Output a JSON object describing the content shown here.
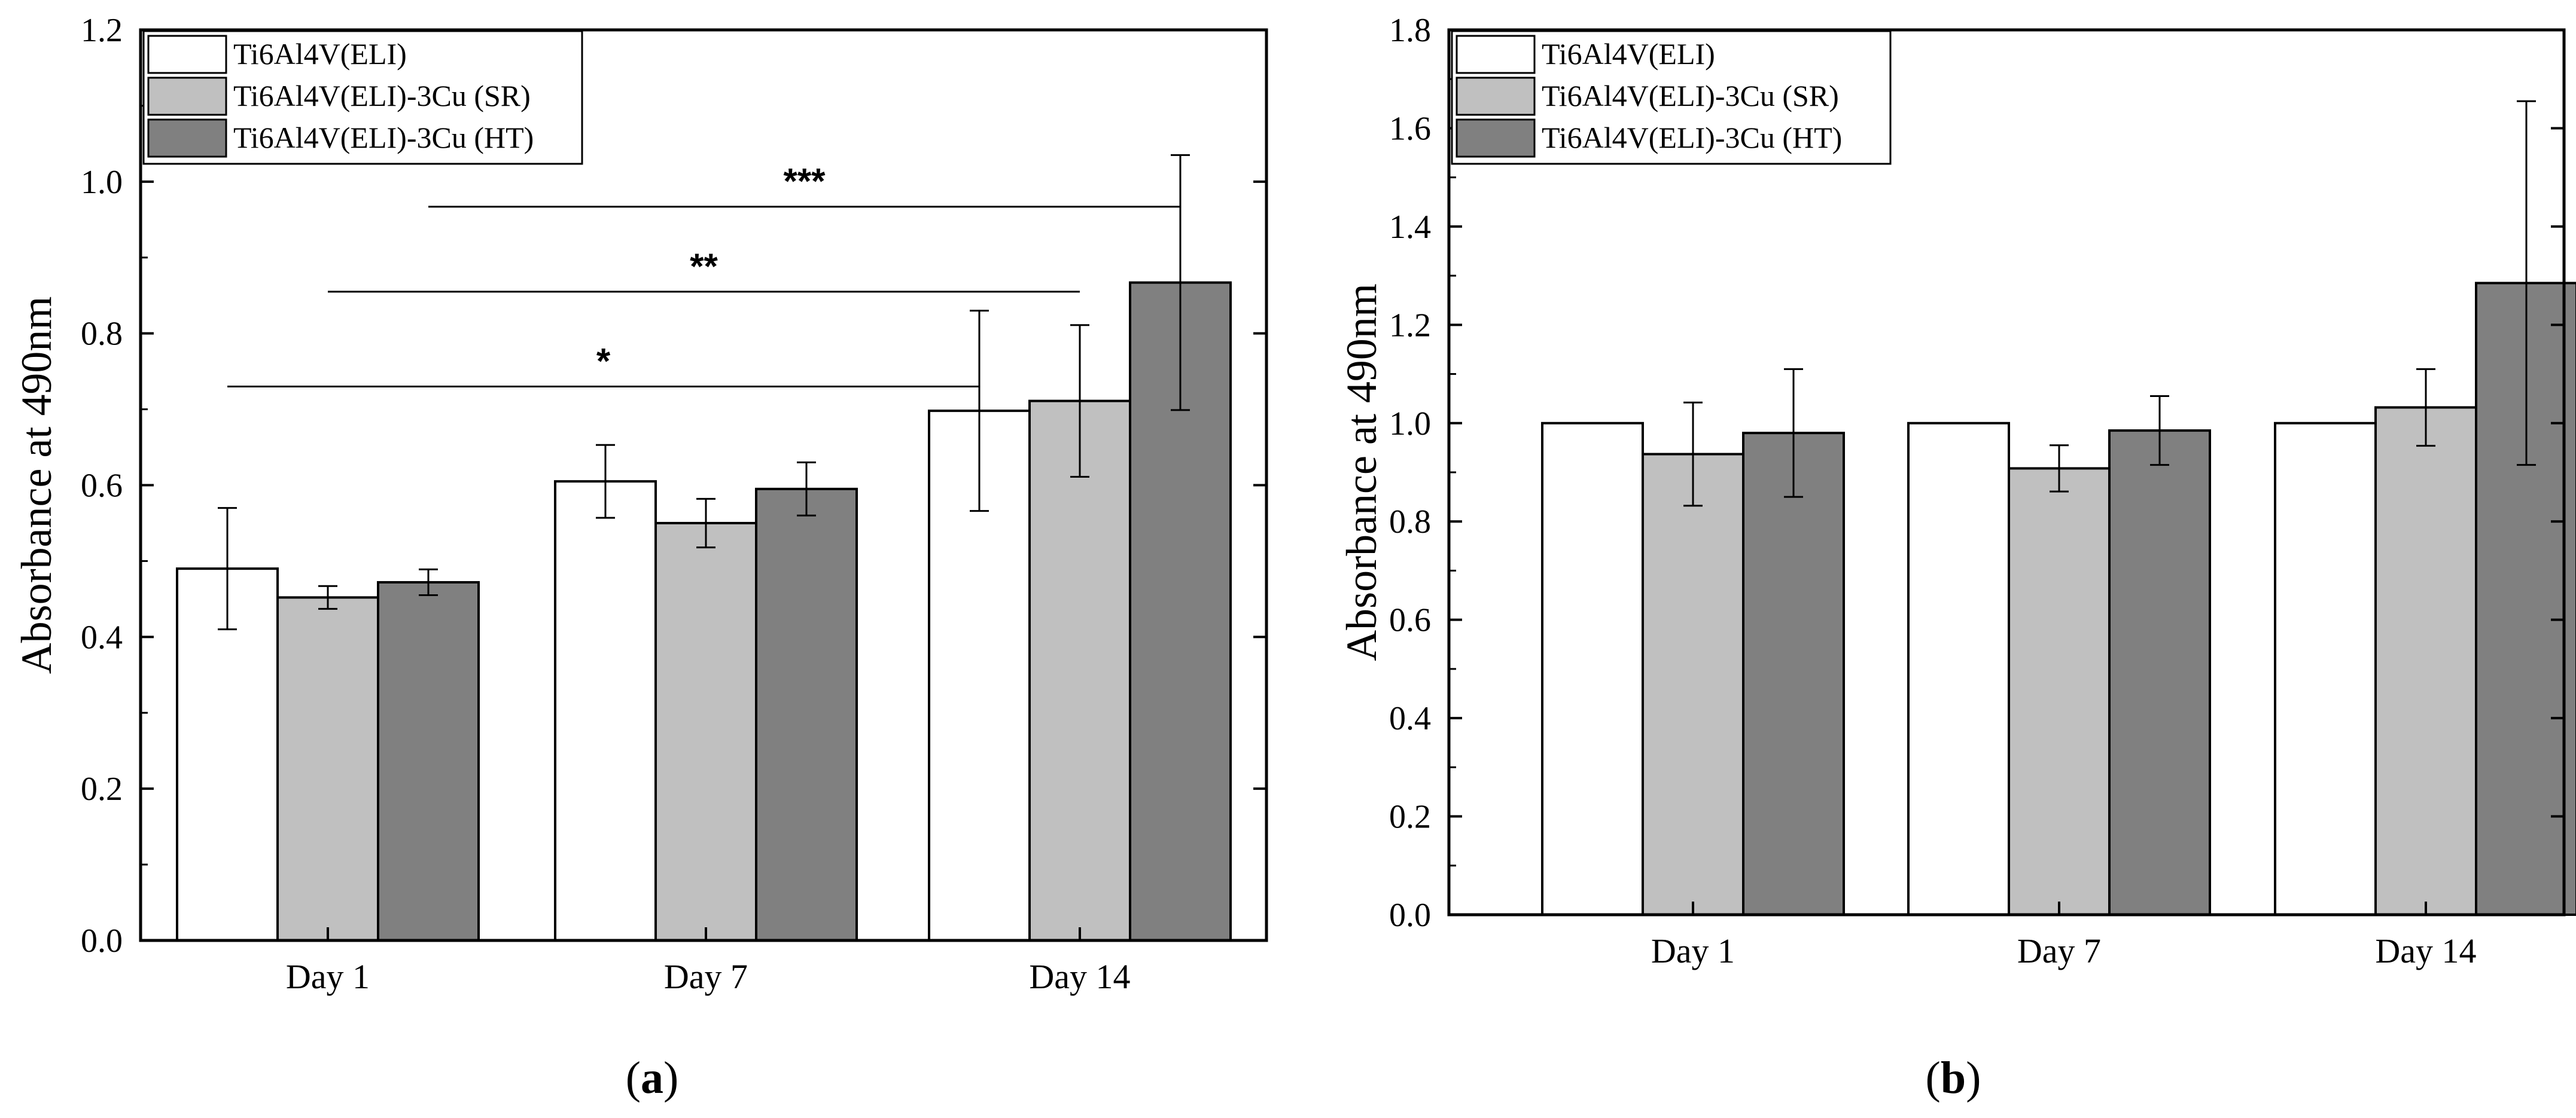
{
  "chart_data": [
    {
      "type": "bar",
      "panel_label": "a",
      "ylabel": "Absorbance at 490nm",
      "xlabel": "",
      "ylim": [
        0,
        1.2
      ],
      "yticks": [
        0.0,
        0.2,
        0.4,
        0.6,
        0.8,
        1.0,
        1.2
      ],
      "ytick_labels": [
        "0.0",
        "0.2",
        "0.4",
        "0.6",
        "0.8",
        "1.0",
        "1.2"
      ],
      "categories": [
        "Day 1",
        "Day 7",
        "Day 14"
      ],
      "legend_position": "top-left",
      "series": [
        {
          "name": "Ti6Al4V(ELI)",
          "color": "#ffffff",
          "values": [
            0.49,
            0.605,
            0.698
          ],
          "errors": [
            0.08,
            0.048,
            0.132
          ]
        },
        {
          "name": "Ti6Al4V(ELI)-3Cu (SR)",
          "color": "#c0c0c0",
          "values": [
            0.452,
            0.55,
            0.711
          ],
          "errors": [
            0.015,
            0.032,
            0.1
          ]
        },
        {
          "name": "Ti6Al4V(ELI)-3Cu (HT)",
          "color": "#808080",
          "values": [
            0.472,
            0.595,
            0.867
          ],
          "errors": [
            0.017,
            0.035,
            0.168
          ]
        }
      ],
      "significance": [
        {
          "label": "*",
          "from": {
            "category": 0,
            "series": 0
          },
          "to": {
            "category": 2,
            "series": 0
          },
          "y": 0.73
        },
        {
          "label": "**",
          "from": {
            "category": 0,
            "series": 1
          },
          "to": {
            "category": 2,
            "series": 1
          },
          "y": 0.855
        },
        {
          "label": "***",
          "from": {
            "category": 0,
            "series": 2
          },
          "to": {
            "category": 2,
            "series": 2
          },
          "y": 0.967
        }
      ]
    },
    {
      "type": "bar",
      "panel_label": "b",
      "ylabel": "Absorbance at 490nm",
      "xlabel": "",
      "ylim": [
        0,
        1.8
      ],
      "yticks": [
        0.0,
        0.2,
        0.4,
        0.6,
        0.8,
        1.0,
        1.2,
        1.4,
        1.6,
        1.8
      ],
      "ytick_labels": [
        "0.0",
        "0.2",
        "0.4",
        "0.6",
        "0.8",
        "1.0",
        "1.2",
        "1.4",
        "1.6",
        "1.8"
      ],
      "categories": [
        "Day 1",
        "Day 7",
        "Day 14"
      ],
      "legend_position": "top-left",
      "series": [
        {
          "name": "Ti6Al4V(ELI)",
          "color": "#ffffff",
          "values": [
            1.0,
            1.0,
            1.0
          ],
          "errors": [
            0,
            0,
            0
          ]
        },
        {
          "name": "Ti6Al4V(ELI)-3Cu (SR)",
          "color": "#c0c0c0",
          "values": [
            0.937,
            0.908,
            1.032
          ],
          "errors": [
            0.105,
            0.047,
            0.078
          ]
        },
        {
          "name": "Ti6Al4V(ELI)-3Cu (HT)",
          "color": "#808080",
          "values": [
            0.98,
            0.985,
            1.285
          ],
          "errors": [
            0.13,
            0.07,
            0.37
          ]
        }
      ],
      "significance": []
    }
  ]
}
